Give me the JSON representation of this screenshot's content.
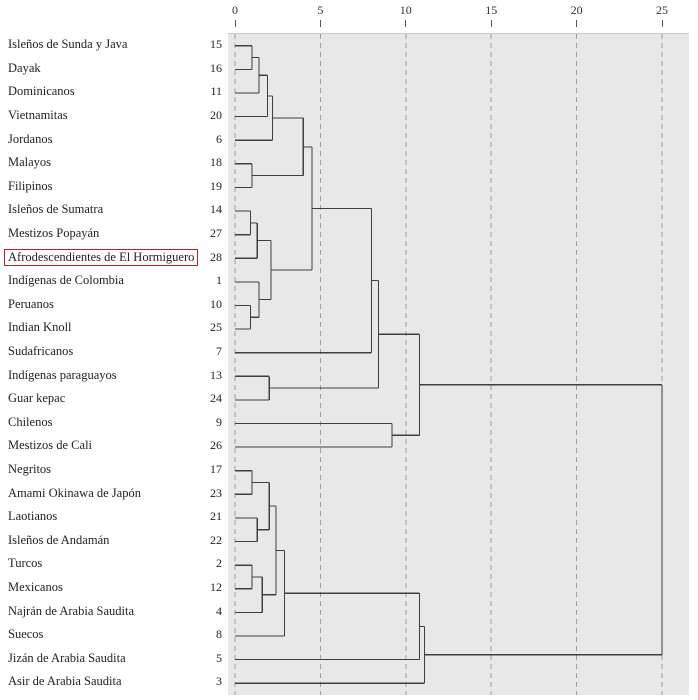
{
  "chart_data": {
    "type": "dendrogram",
    "title": "",
    "axis": {
      "ticks": [
        0,
        5,
        10,
        15,
        20,
        25
      ],
      "min": 0,
      "max": 25
    },
    "leaves": [
      {
        "num": 15,
        "label": "Isleños de Sunda y Java"
      },
      {
        "num": 16,
        "label": "Dayak"
      },
      {
        "num": 11,
        "label": "Dominicanos"
      },
      {
        "num": 20,
        "label": "Vietnamitas"
      },
      {
        "num": 6,
        "label": "Jordanos"
      },
      {
        "num": 18,
        "label": "Malayos"
      },
      {
        "num": 19,
        "label": "Filipinos"
      },
      {
        "num": 14,
        "label": "Isleños de Sumatra"
      },
      {
        "num": 27,
        "label": "Mestizos Popayán"
      },
      {
        "num": 28,
        "label": "Afrodescendientes de El Hormiguero",
        "highlighted": true
      },
      {
        "num": 1,
        "label": "Indígenas de Colombia"
      },
      {
        "num": 10,
        "label": "Peruanos"
      },
      {
        "num": 25,
        "label": "Indian Knoll"
      },
      {
        "num": 7,
        "label": "Sudafricanos"
      },
      {
        "num": 13,
        "label": "Indígenas paraguayos"
      },
      {
        "num": 24,
        "label": "Guar kepac"
      },
      {
        "num": 9,
        "label": "Chilenos"
      },
      {
        "num": 26,
        "label": "Mestizos de Cali"
      },
      {
        "num": 17,
        "label": "Negritos"
      },
      {
        "num": 23,
        "label": "Amami Okinawa de Japón"
      },
      {
        "num": 21,
        "label": "Laotianos"
      },
      {
        "num": 22,
        "label": "Isleños de Andamán"
      },
      {
        "num": 2,
        "label": "Turcos"
      },
      {
        "num": 12,
        "label": "Mexicanos"
      },
      {
        "num": 4,
        "label": "Najrán de Arabia Saudita"
      },
      {
        "num": 8,
        "label": "Suecos"
      },
      {
        "num": 5,
        "label": "Jizán de Arabia Saudita"
      },
      {
        "num": 3,
        "label": "Asir de Arabia Saudita"
      }
    ],
    "merges": [
      {
        "a": "L15",
        "b": "L16",
        "d": 1.0
      },
      {
        "a": "M1",
        "b": "L11",
        "d": 1.4
      },
      {
        "a": "M2",
        "b": "L20",
        "d": 1.9
      },
      {
        "a": "M3",
        "b": "L6",
        "d": 2.2
      },
      {
        "a": "L18",
        "b": "L19",
        "d": 1.0
      },
      {
        "a": "M4",
        "b": "M5",
        "d": 4.0
      },
      {
        "a": "L14",
        "b": "L27",
        "d": 0.9
      },
      {
        "a": "M7",
        "b": "L28",
        "d": 1.3
      },
      {
        "a": "L10",
        "b": "L25",
        "d": 0.9
      },
      {
        "a": "L1",
        "b": "M9",
        "d": 1.4
      },
      {
        "a": "M8",
        "b": "M10",
        "d": 2.1
      },
      {
        "a": "M6",
        "b": "M11",
        "d": 4.5
      },
      {
        "a": "M12",
        "b": "L7",
        "d": 8.0
      },
      {
        "a": "L13",
        "b": "L24",
        "d": 2.0
      },
      {
        "a": "M13",
        "b": "M14",
        "d": 8.4
      },
      {
        "a": "L9",
        "b": "L26",
        "d": 9.2
      },
      {
        "a": "M15",
        "b": "M16",
        "d": 10.8
      },
      {
        "a": "L17",
        "b": "L23",
        "d": 1.0
      },
      {
        "a": "L21",
        "b": "L22",
        "d": 1.3
      },
      {
        "a": "M18",
        "b": "M19",
        "d": 2.0
      },
      {
        "a": "L2",
        "b": "L12",
        "d": 1.0
      },
      {
        "a": "M21",
        "b": "L4",
        "d": 1.6
      },
      {
        "a": "M20",
        "b": "M22",
        "d": 2.4
      },
      {
        "a": "M23",
        "b": "L8",
        "d": 2.9
      },
      {
        "a": "M24",
        "b": "L5",
        "d": 10.8
      },
      {
        "a": "M25",
        "b": "L3",
        "d": 11.1
      },
      {
        "a": "M17",
        "b": "M26",
        "d": 25.0
      }
    ],
    "colors": {
      "highlight_border": "#b5232a",
      "line": "#3f3f3f",
      "plot_background": "#e8e8e8",
      "grid": "#9f9f9f"
    }
  }
}
